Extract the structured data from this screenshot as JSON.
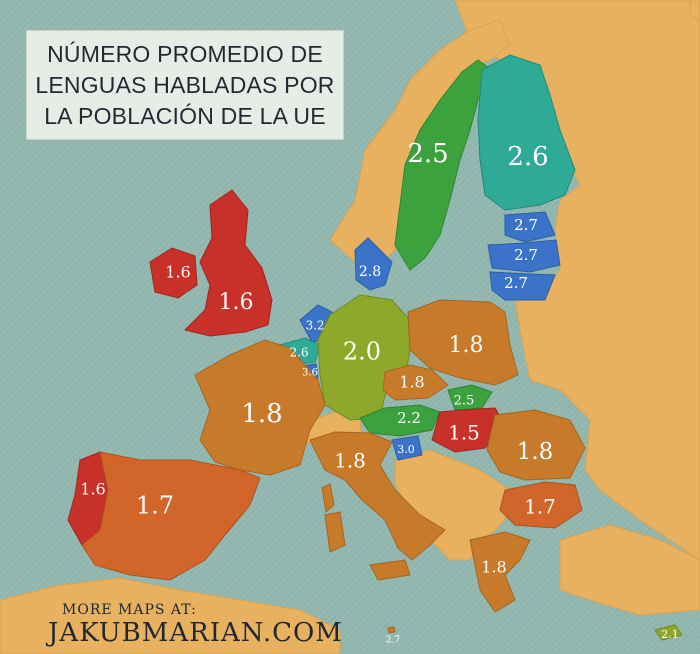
{
  "title": "NÚMERO PROMEDIO DE\nLENGUAS HABLADAS POR\nLA POBLACIÓN DE LA UE",
  "credit": {
    "line1": "MORE MAPS AT:",
    "line2": "JAKUBMARIAN.COM"
  },
  "colors": {
    "sea": "#8fb5ad",
    "land_other": "#e7b15f",
    "red": "#c8302a",
    "orange_red": "#d2662a",
    "brown_orange": "#c77a2a",
    "olive_green": "#8ea82a",
    "green": "#3ca23e",
    "teal": "#2faa96",
    "blue": "#3a73c8"
  },
  "regions": [
    {
      "id": "sweden",
      "value": "2.5"
    },
    {
      "id": "finland",
      "value": "2.6"
    },
    {
      "id": "estonia",
      "value": "2.7"
    },
    {
      "id": "latvia",
      "value": "2.7"
    },
    {
      "id": "lithuania",
      "value": "2.7"
    },
    {
      "id": "denmark",
      "value": "2.8"
    },
    {
      "id": "ireland",
      "value": "1.6"
    },
    {
      "id": "uk",
      "value": "1.6"
    },
    {
      "id": "netherlands",
      "value": "3.2"
    },
    {
      "id": "belgium",
      "value": "2.6"
    },
    {
      "id": "luxembourg",
      "value": "3.6"
    },
    {
      "id": "germany",
      "value": "2.0"
    },
    {
      "id": "poland",
      "value": "1.8"
    },
    {
      "id": "czechia",
      "value": "1.8"
    },
    {
      "id": "slovakia",
      "value": "2.5"
    },
    {
      "id": "austria",
      "value": "2.2"
    },
    {
      "id": "hungary",
      "value": "1.5"
    },
    {
      "id": "slovenia",
      "value": "3.0"
    },
    {
      "id": "france",
      "value": "1.8"
    },
    {
      "id": "italy",
      "value": "1.8"
    },
    {
      "id": "romania",
      "value": "1.8"
    },
    {
      "id": "bulgaria",
      "value": "1.7"
    },
    {
      "id": "portugal",
      "value": "1.6"
    },
    {
      "id": "spain",
      "value": "1.7"
    },
    {
      "id": "greece",
      "value": "1.8"
    },
    {
      "id": "malta",
      "value": "2.7"
    },
    {
      "id": "cyprus",
      "value": "2.1"
    }
  ]
}
